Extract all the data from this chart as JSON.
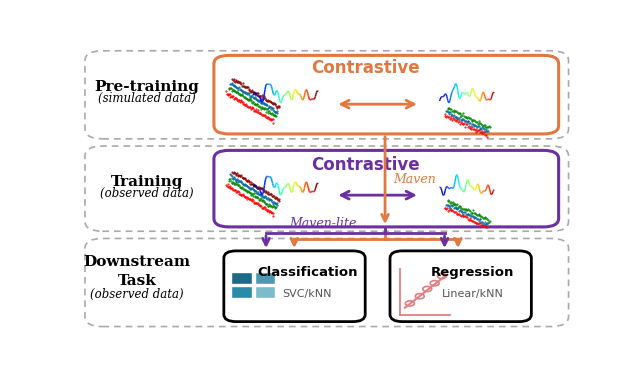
{
  "bg_color": "#ffffff",
  "orange_color": "#E07840",
  "purple_color": "#6B2FA0",
  "maven_label": "Maven",
  "maven_lite_label": "Maven-lite",
  "classification_label": "Classification",
  "classification_sub": "SVC/kNN",
  "regression_label": "Regression",
  "regression_sub": "Linear/kNN",
  "pre_label": "Pre-training",
  "pre_sublabel": "(simulated data)",
  "train_label": "Training",
  "train_sublabel": "(observed data)",
  "down_label": "Downstream\nTask",
  "down_sublabel": "(observed data)"
}
